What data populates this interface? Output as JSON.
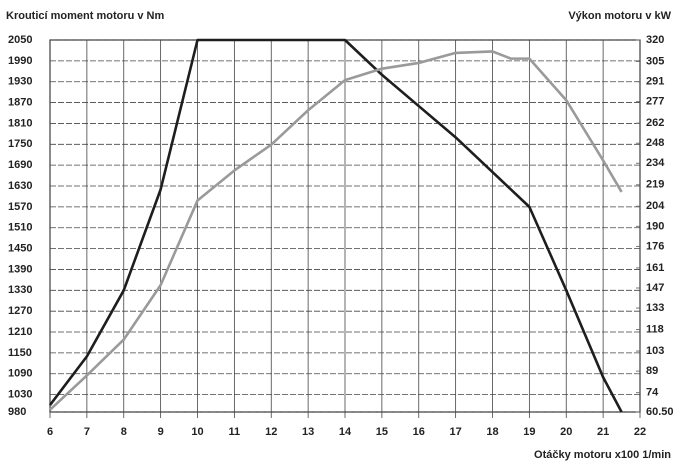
{
  "chart_data": {
    "type": "line",
    "title": "Krouticí moment motoru v Nm",
    "subtitle": "Výkon motoru v kW",
    "x_label": "Otáčky motoru x100 1/min",
    "xlim": [
      6,
      22
    ],
    "xticks": [
      6,
      7,
      8,
      9,
      10,
      11,
      12,
      13,
      14,
      15,
      16,
      17,
      18,
      19,
      20,
      21,
      22
    ],
    "ylim": [
      980,
      2050
    ],
    "yticks": [
      2050,
      1990,
      1930,
      1870,
      1810,
      1750,
      1690,
      1630,
      1570,
      1510,
      1450,
      1390,
      1330,
      1270,
      1210,
      1150,
      1090,
      1030,
      980
    ],
    "y2lim": [
      60.5,
      320
    ],
    "y2ticks": [
      320,
      305,
      291,
      277,
      262,
      248,
      234,
      219,
      204,
      190,
      176,
      161,
      147,
      133,
      118,
      103,
      89,
      74,
      {
        "value": 60.5,
        "label": "60.50"
      }
    ],
    "grid": true,
    "series": [
      {
        "color": "#1e1e1e",
        "x": [
          6,
          7,
          8,
          9,
          10,
          14,
          15,
          16,
          17,
          18,
          19,
          20,
          21,
          21.5
        ],
        "values": [
          1000,
          1140,
          1330,
          1620,
          2050,
          2050,
          1950,
          1860,
          1770,
          1670,
          1570,
          1330,
          1080,
          980
        ]
      },
      {
        "color": "#9a9a9a",
        "axis": "y2",
        "x": [
          6,
          7,
          8,
          9,
          10,
          11,
          12,
          13,
          14,
          15,
          16,
          17,
          18,
          18.5,
          19,
          20,
          21,
          21.5
        ],
        "values": [
          62,
          86,
          111,
          149,
          208,
          229,
          247,
          271,
          292,
          300,
          304,
          311,
          312,
          307,
          307,
          278,
          236,
          214
        ]
      }
    ]
  }
}
